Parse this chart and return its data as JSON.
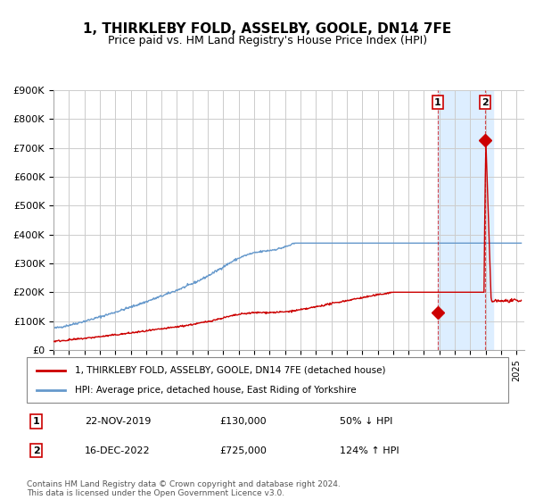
{
  "title": "1, THIRKLEBY FOLD, ASSELBY, GOOLE, DN14 7FE",
  "subtitle": "Price paid vs. HM Land Registry's House Price Index (HPI)",
  "title_fontsize": 11,
  "subtitle_fontsize": 9,
  "xlabel": "",
  "ylabel": "",
  "ylim": [
    0,
    900000
  ],
  "xlim_start": 1995.0,
  "xlim_end": 2025.5,
  "hpi_color": "#6699cc",
  "price_color": "#cc0000",
  "background_color": "#ffffff",
  "plot_bg_color": "#ffffff",
  "shade_color": "#ddeeff",
  "grid_color": "#cccccc",
  "transaction1_date": 2019.9,
  "transaction1_price": 130000,
  "transaction2_date": 2022.96,
  "transaction2_price": 725000,
  "legend_label_price": "1, THIRKLEBY FOLD, ASSELBY, GOOLE, DN14 7FE (detached house)",
  "legend_label_hpi": "HPI: Average price, detached house, East Riding of Yorkshire",
  "table_row1": [
    "1",
    "22-NOV-2019",
    "£130,000",
    "50% ↓ HPI"
  ],
  "table_row2": [
    "2",
    "16-DEC-2022",
    "£725,000",
    "124% ↑ HPI"
  ],
  "footnote": "Contains HM Land Registry data © Crown copyright and database right 2024.\nThis data is licensed under the Open Government Licence v3.0.",
  "ytick_labels": [
    "£0",
    "£100K",
    "£200K",
    "£300K",
    "£400K",
    "£500K",
    "£600K",
    "£700K",
    "£800K",
    "£900K"
  ],
  "ytick_values": [
    0,
    100000,
    200000,
    300000,
    400000,
    500000,
    600000,
    700000,
    800000,
    900000
  ]
}
